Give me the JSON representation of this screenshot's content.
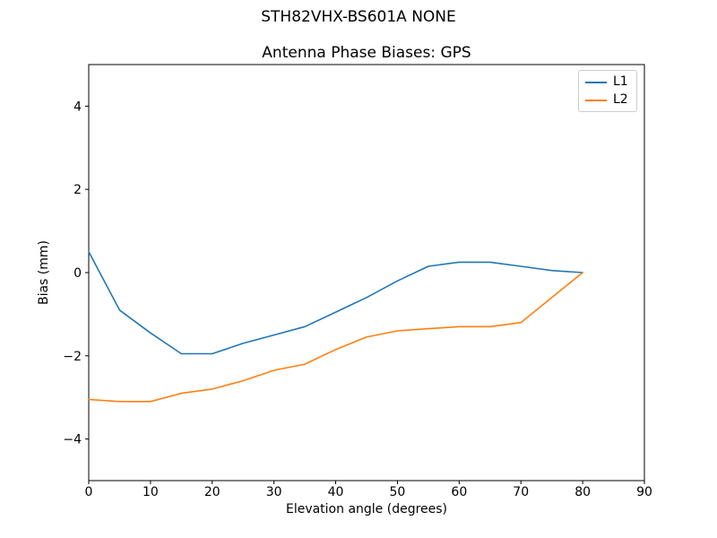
{
  "header": {
    "title": "STH82VHX-BS601A NONE"
  },
  "chart_data": {
    "type": "line",
    "title": "Antenna Phase Biases: GPS",
    "xlabel": "Elevation angle (degrees)",
    "ylabel": "Bias (mm)",
    "xlim": [
      0,
      90
    ],
    "ylim": [
      -5,
      5
    ],
    "xticks": [
      0,
      10,
      20,
      30,
      40,
      50,
      60,
      70,
      80,
      90
    ],
    "xtick_labels": [
      "0",
      "10",
      "20",
      "30",
      "40",
      "50",
      "60",
      "70",
      "80",
      "90"
    ],
    "yticks": [
      -4,
      -2,
      0,
      2,
      4
    ],
    "ytick_labels": [
      "−4",
      "−2",
      "0",
      "2",
      "4"
    ],
    "grid": false,
    "legend_position": "upper right",
    "x": [
      0,
      5,
      10,
      15,
      20,
      25,
      30,
      35,
      40,
      45,
      50,
      55,
      60,
      65,
      70,
      75,
      80
    ],
    "series": [
      {
        "name": "L1",
        "color": "#1f77b4",
        "values": [
          0.5,
          -0.9,
          -1.45,
          -1.95,
          -1.95,
          -1.7,
          -1.5,
          -1.3,
          -0.95,
          -0.6,
          -0.2,
          0.15,
          0.25,
          0.25,
          0.15,
          0.05,
          0.0
        ]
      },
      {
        "name": "L2",
        "color": "#ff7f0e",
        "values": [
          -3.05,
          -3.1,
          -3.1,
          -2.9,
          -2.8,
          -2.6,
          -2.35,
          -2.2,
          -1.85,
          -1.55,
          -1.4,
          -1.35,
          -1.3,
          -1.3,
          -1.2,
          -0.6,
          0.0
        ]
      }
    ]
  }
}
